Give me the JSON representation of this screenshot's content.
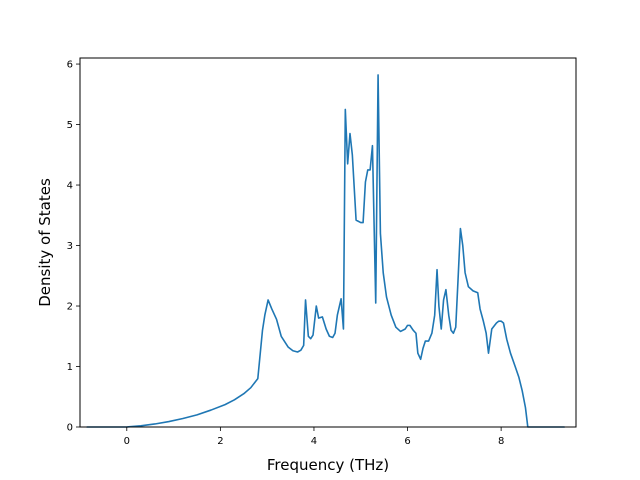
{
  "chart_data": {
    "type": "line",
    "title": "",
    "xlabel": "Frequency (THz)",
    "ylabel": "Density of States",
    "xlim": [
      -1.0,
      9.6
    ],
    "ylim": [
      0,
      6.1
    ],
    "xticks": [
      0,
      2,
      4,
      6,
      8
    ],
    "yticks": [
      0,
      1,
      2,
      3,
      4,
      5,
      6
    ],
    "grid": false,
    "color": "#1f77b4",
    "series": [
      {
        "x": [
          -0.85,
          -0.4,
          0.0,
          0.3,
          0.6,
          0.9,
          1.2,
          1.5,
          1.8,
          2.1,
          2.3,
          2.5,
          2.65,
          2.8,
          2.9,
          2.95,
          3.02,
          3.1,
          3.2,
          3.3,
          3.45,
          3.55,
          3.65,
          3.72,
          3.78,
          3.82,
          3.88,
          3.93,
          3.98,
          4.05,
          4.1,
          4.18,
          4.26,
          4.33,
          4.4,
          4.45,
          4.5,
          4.58,
          4.63,
          4.67,
          4.72,
          4.77,
          4.82,
          4.9,
          5.0,
          5.05,
          5.1,
          5.15,
          5.2,
          5.25,
          5.32,
          5.37,
          5.42,
          5.48,
          5.55,
          5.65,
          5.75,
          5.85,
          5.95,
          6.0,
          6.05,
          6.12,
          6.18,
          6.22,
          6.28,
          6.33,
          6.38,
          6.45,
          6.52,
          6.58,
          6.63,
          6.67,
          6.72,
          6.77,
          6.82,
          6.88,
          6.93,
          6.98,
          7.03,
          7.08,
          7.13,
          7.18,
          7.23,
          7.3,
          7.4,
          7.5,
          7.55,
          7.62,
          7.68,
          7.73,
          7.8,
          7.9,
          7.95,
          8.0,
          8.05,
          8.12,
          8.2,
          8.3,
          8.38,
          8.45,
          8.52,
          8.57,
          9.0,
          9.35
        ],
        "y": [
          0.0,
          0.0,
          0.0,
          0.02,
          0.05,
          0.09,
          0.14,
          0.2,
          0.28,
          0.37,
          0.45,
          0.55,
          0.65,
          0.8,
          1.6,
          1.85,
          2.1,
          1.95,
          1.78,
          1.5,
          1.32,
          1.26,
          1.24,
          1.27,
          1.35,
          2.1,
          1.5,
          1.46,
          1.52,
          2.0,
          1.8,
          1.82,
          1.62,
          1.5,
          1.48,
          1.55,
          1.85,
          2.12,
          1.62,
          5.25,
          4.35,
          4.85,
          4.5,
          3.42,
          3.38,
          3.38,
          4.05,
          4.25,
          4.25,
          4.65,
          2.05,
          5.82,
          3.2,
          2.55,
          2.15,
          1.85,
          1.65,
          1.58,
          1.62,
          1.68,
          1.68,
          1.6,
          1.55,
          1.22,
          1.12,
          1.3,
          1.42,
          1.42,
          1.55,
          1.85,
          2.6,
          2.0,
          1.62,
          2.1,
          2.27,
          1.85,
          1.6,
          1.55,
          1.65,
          2.45,
          3.28,
          3.0,
          2.55,
          2.32,
          2.25,
          2.22,
          1.95,
          1.75,
          1.55,
          1.22,
          1.62,
          1.72,
          1.75,
          1.75,
          1.72,
          1.45,
          1.22,
          1.0,
          0.82,
          0.6,
          0.32,
          0.0,
          0.0,
          0.0
        ]
      }
    ]
  }
}
